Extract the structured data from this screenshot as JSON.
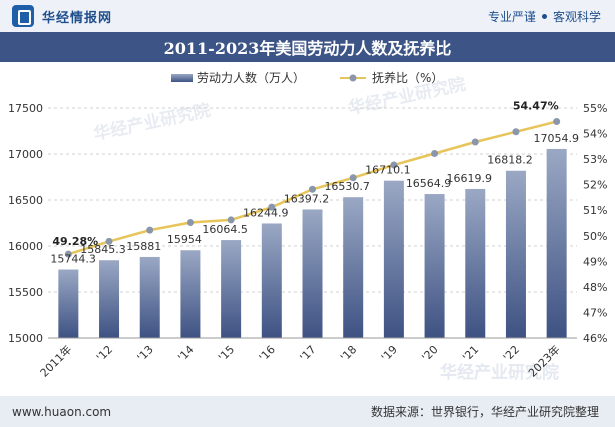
{
  "header": {
    "brand": "华经情报网",
    "tagline_left": "专业严谨",
    "tagline_right": "客观科学"
  },
  "title": "2011-2023年美国劳动力人数及抚养比",
  "watermark": "华经产业研究院",
  "footer": {
    "url": "www.huaon.com",
    "source": "数据来源：世界银行，华经产业研究院整理"
  },
  "chart_data": {
    "type": "bar",
    "title": "2011-2023年美国劳动力人数及抚养比",
    "categories": [
      "2011年",
      "'12",
      "'13",
      "'14",
      "'15",
      "'16",
      "'17",
      "'18",
      "'19",
      "'20",
      "'21",
      "'22",
      "2023年"
    ],
    "series": [
      {
        "name": "劳动力人数（万人）",
        "type": "bar",
        "axis": "left",
        "values": [
          15744.3,
          15845.3,
          15881,
          15954,
          16064.5,
          16244.9,
          16397.2,
          16530.7,
          16710.1,
          16564.9,
          16619.9,
          16818.2,
          17054.9
        ],
        "labels": [
          "15744.3",
          "15845.3",
          "15881",
          "15954",
          "16064.5",
          "16244.9",
          "16397.2",
          "16530.7",
          "16710.1",
          "16564.9",
          "16619.9",
          "16818.2",
          "17054.9"
        ]
      },
      {
        "name": "抚养比（%）",
        "type": "line",
        "axis": "right",
        "values": [
          49.28,
          49.78,
          50.22,
          50.52,
          50.62,
          51.12,
          51.82,
          52.27,
          52.77,
          53.22,
          53.67,
          54.07,
          54.47
        ],
        "labels": [
          "49.28%",
          "",
          "",
          "",
          "",
          "",
          "",
          "",
          "",
          "",
          "",
          "",
          "54.47%"
        ]
      }
    ],
    "y_left": {
      "min": 15000,
      "max": 17500,
      "ticks": [
        "15000",
        "15500",
        "16000",
        "16500",
        "17000",
        "17500"
      ]
    },
    "y_right": {
      "min": 46,
      "max": 55,
      "ticks": [
        "46%",
        "47%",
        "48%",
        "49%",
        "50%",
        "51%",
        "52%",
        "53%",
        "54%",
        "55%"
      ]
    },
    "legend_position": "top-center",
    "grid": true,
    "colors": {
      "bar_top": "#9aa8c4",
      "bar_bottom": "#3e5283",
      "line": "#e8c55a",
      "marker": "#8a96aa"
    }
  }
}
